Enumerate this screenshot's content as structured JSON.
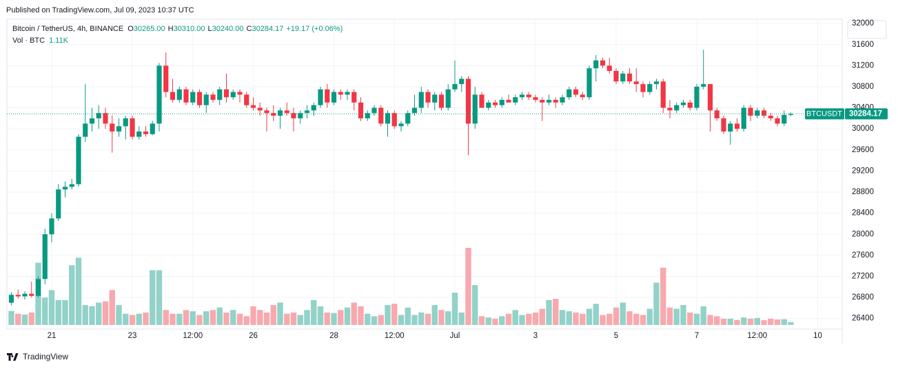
{
  "header": {
    "published": "Published on TradingView.com, Jul 09, 2023 10:37 UTC"
  },
  "footer": {
    "brand": "TradingView"
  },
  "chart_data": {
    "type": "candlestick",
    "symbol": "Bitcoin / TetherUS, 4h, BINANCE",
    "legend": [
      {
        "key": "O",
        "value": "30265.00"
      },
      {
        "key": "H",
        "value": "30310.00"
      },
      {
        "key": "L",
        "value": "30240.00"
      },
      {
        "key": "C",
        "value": "30284.17"
      }
    ],
    "change": "+19.17 (+0.06%)",
    "volume_title": "Vol · BTC",
    "volume_last_label": "1.11K",
    "price_tag": "BTCUSDT",
    "last_price": 30284.17,
    "up_color": "#089981",
    "down_color": "#f23645",
    "up_volume_color": "#92d2c8",
    "down_volume_color": "#f7a9ae",
    "open": [
      26700,
      26850,
      26820,
      26870,
      26830,
      27150,
      28000,
      28300,
      28850,
      28900,
      28950,
      29850,
      30100,
      30200,
      30300,
      30100,
      29950,
      30050,
      30200,
      29850,
      29950,
      29900,
      30100,
      31200,
      30700,
      30550,
      30750,
      30500,
      30700,
      30450,
      30650,
      30550,
      30750,
      30600,
      30700,
      30650,
      30450,
      30400,
      30350,
      30300,
      30250,
      30350,
      30300,
      30200,
      30300,
      30350,
      30450,
      30750,
      30500,
      30700,
      30650,
      30700,
      30500,
      30200,
      30300,
      30400,
      30100,
      30300,
      30050,
      30100,
      30300,
      30400,
      30700,
      30500,
      30650,
      30400,
      30750,
      30850,
      30950,
      30100,
      30650,
      30400,
      30500,
      30450,
      30550,
      30500,
      30600,
      30650,
      30600,
      30550,
      30500,
      30550,
      30500,
      30600,
      30750,
      30650,
      30600,
      31150,
      31300,
      31200,
      31100,
      30900,
      31050,
      30900,
      30850,
      30700,
      30850,
      30900,
      30400,
      30350,
      30450,
      30500,
      30400,
      30800,
      30850,
      30350,
      30200,
      29950,
      30100,
      30000,
      30400,
      30250,
      30350,
      30250,
      30200,
      30100,
      30265
    ],
    "high": [
      26900,
      26950,
      26920,
      27100,
      27200,
      28100,
      28400,
      28950,
      29000,
      29050,
      29900,
      30850,
      30400,
      30450,
      30400,
      30250,
      30200,
      30250,
      30250,
      30050,
      30050,
      30150,
      31250,
      31450,
      30950,
      30800,
      30800,
      30750,
      30750,
      30700,
      30700,
      30800,
      31050,
      30750,
      30750,
      30700,
      30600,
      30500,
      30400,
      30450,
      30400,
      30500,
      30400,
      30350,
      30450,
      30500,
      30800,
      30850,
      30750,
      30750,
      30750,
      30750,
      30600,
      30350,
      30450,
      30450,
      30350,
      30350,
      30150,
      30350,
      30650,
      30800,
      30750,
      30700,
      30700,
      30850,
      31300,
      31000,
      31000,
      30800,
      30700,
      30550,
      30550,
      30600,
      30650,
      30650,
      30700,
      30700,
      30650,
      30600,
      30650,
      30600,
      30650,
      30800,
      30800,
      30700,
      31200,
      31400,
      31350,
      31350,
      31150,
      31100,
      31150,
      31150,
      30900,
      30900,
      30950,
      30950,
      30550,
      30500,
      30550,
      30550,
      30850,
      31500,
      30850,
      30400,
      30250,
      30150,
      30200,
      30450,
      30450,
      30400,
      30400,
      30300,
      30250,
      30350,
      30310
    ],
    "low": [
      26650,
      26780,
      26760,
      26800,
      26800,
      27050,
      27850,
      28250,
      28700,
      28850,
      28900,
      29750,
      29950,
      30000,
      30000,
      29550,
      29850,
      29800,
      29800,
      29800,
      29850,
      29880,
      29950,
      30600,
      30500,
      30500,
      30450,
      30450,
      30400,
      30300,
      30500,
      30450,
      30500,
      30550,
      30500,
      30400,
      30350,
      30250,
      29950,
      30150,
      30000,
      30250,
      29950,
      30100,
      30200,
      30250,
      30400,
      30400,
      30450,
      30550,
      30550,
      30350,
      30150,
      30150,
      30250,
      30050,
      29850,
      30000,
      29950,
      30050,
      30250,
      30300,
      30400,
      30350,
      30350,
      30350,
      30700,
      30700,
      29500,
      30000,
      30400,
      30350,
      30400,
      30400,
      30500,
      30450,
      30550,
      30550,
      30500,
      30150,
      30450,
      30400,
      30450,
      30550,
      30600,
      30550,
      30550,
      30900,
      31150,
      31050,
      30850,
      30850,
      30850,
      30700,
      30600,
      30650,
      30750,
      30300,
      30200,
      30300,
      30400,
      30350,
      30350,
      30750,
      29950,
      30150,
      29900,
      29700,
      29950,
      29950,
      30150,
      30200,
      30200,
      30150,
      30050,
      30050,
      30240
    ],
    "close": [
      26850,
      26820,
      26870,
      26830,
      27150,
      28000,
      28300,
      28850,
      28900,
      28950,
      29850,
      30100,
      30200,
      30300,
      30100,
      29950,
      30050,
      30200,
      29850,
      29950,
      29900,
      30100,
      31200,
      30700,
      30550,
      30750,
      30500,
      30700,
      30450,
      30650,
      30550,
      30750,
      30600,
      30700,
      30650,
      30450,
      30400,
      30350,
      30300,
      30250,
      30350,
      30300,
      30200,
      30300,
      30350,
      30450,
      30750,
      30500,
      30700,
      30650,
      30700,
      30500,
      30200,
      30300,
      30400,
      30100,
      30300,
      30050,
      30100,
      30300,
      30400,
      30700,
      30500,
      30650,
      30400,
      30750,
      30850,
      30950,
      30100,
      30650,
      30400,
      30500,
      30450,
      30550,
      30500,
      30600,
      30650,
      30600,
      30550,
      30500,
      30550,
      30500,
      30600,
      30750,
      30650,
      30600,
      31150,
      31300,
      31200,
      31100,
      30900,
      31050,
      30900,
      30850,
      30700,
      30850,
      30900,
      30400,
      30350,
      30450,
      30500,
      30400,
      30800,
      30850,
      30350,
      30200,
      29950,
      30100,
      30000,
      30400,
      30250,
      30350,
      30250,
      30200,
      30100,
      30265,
      30284.17
    ],
    "volume": [
      5600,
      4500,
      4200,
      5000,
      25000,
      11000,
      14000,
      10000,
      10000,
      24000,
      27000,
      8000,
      7500,
      9000,
      9500,
      14000,
      8000,
      4500,
      4000,
      4500,
      5000,
      22000,
      22000,
      6000,
      4500,
      4500,
      6000,
      5500,
      4000,
      5500,
      6000,
      7000,
      5000,
      6000,
      4500,
      3500,
      7500,
      6000,
      5000,
      8000,
      9000,
      4500,
      5000,
      4000,
      6000,
      10000,
      7500,
      5000,
      4800,
      6000,
      7000,
      9000,
      7500,
      4500,
      3500,
      4000,
      8000,
      8500,
      4000,
      7000,
      4000,
      5000,
      4500,
      8000,
      6000,
      5500,
      13000,
      5000,
      31000,
      16000,
      3500,
      3000,
      2500,
      3500,
      4500,
      6000,
      4000,
      4500,
      5000,
      6500,
      10000,
      10500,
      6000,
      5500,
      5000,
      4500,
      6500,
      8500,
      4000,
      4500,
      7000,
      9000,
      5500,
      4500,
      4000,
      6500,
      17000,
      23000,
      7000,
      6500,
      8000,
      5000,
      4500,
      7500,
      4000,
      3500,
      2500,
      2500,
      2000,
      3000,
      2500,
      2800,
      1900,
      2500,
      2200,
      2300,
      1110
    ],
    "ylim": [
      26200,
      32080
    ],
    "yticks": [
      26400,
      26800,
      27200,
      27600,
      28000,
      28400,
      28800,
      29200,
      29600,
      30000,
      30400,
      30800,
      31200,
      31600,
      32000
    ],
    "xticks": [
      {
        "value": 6,
        "label": "21"
      },
      {
        "value": 18,
        "label": "23"
      },
      {
        "value": 27,
        "label": "12:00"
      },
      {
        "value": 36,
        "label": "26"
      },
      {
        "value": 48,
        "label": "28"
      },
      {
        "value": 57,
        "label": "12:00"
      },
      {
        "value": 66,
        "label": "Jul"
      },
      {
        "value": 78,
        "label": "3"
      },
      {
        "value": 90,
        "label": "5"
      },
      {
        "value": 102,
        "label": "7"
      },
      {
        "value": 111,
        "label": "12:00"
      },
      {
        "value": 120,
        "label": "10"
      }
    ],
    "grid": true
  }
}
